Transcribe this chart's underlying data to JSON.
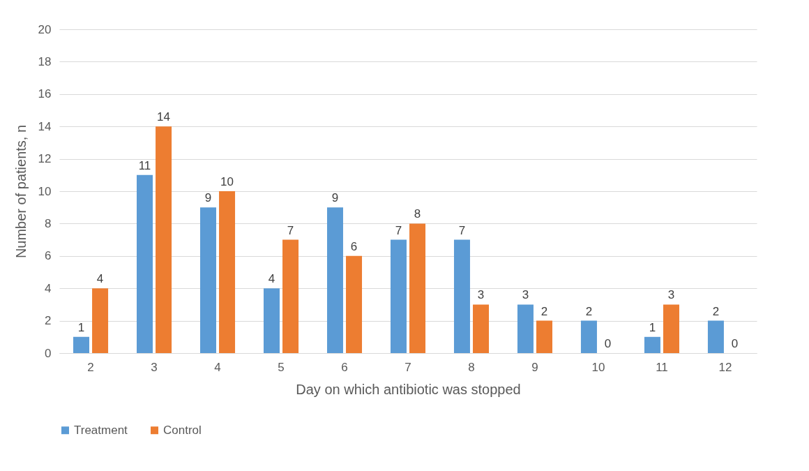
{
  "chart_data": {
    "type": "bar",
    "xlabel": "Day on which antibiotic was stopped",
    "ylabel": "Number of patients, n",
    "categories": [
      "2",
      "3",
      "4",
      "5",
      "6",
      "7",
      "8",
      "9",
      "10",
      "11",
      "12"
    ],
    "series": [
      {
        "name": "Treatment",
        "color": "#5b9bd5",
        "values": [
          1,
          11,
          9,
          4,
          9,
          7,
          7,
          3,
          2,
          1,
          2
        ]
      },
      {
        "name": "Control",
        "color": "#ed7d31",
        "values": [
          4,
          14,
          10,
          7,
          6,
          8,
          3,
          2,
          0,
          3,
          0
        ]
      }
    ],
    "ylim": [
      0,
      20
    ],
    "yticks": [
      0,
      2,
      4,
      6,
      8,
      10,
      12,
      14,
      16,
      18,
      20
    ],
    "grid": "y",
    "legend": "bottom",
    "data_labels": true
  }
}
